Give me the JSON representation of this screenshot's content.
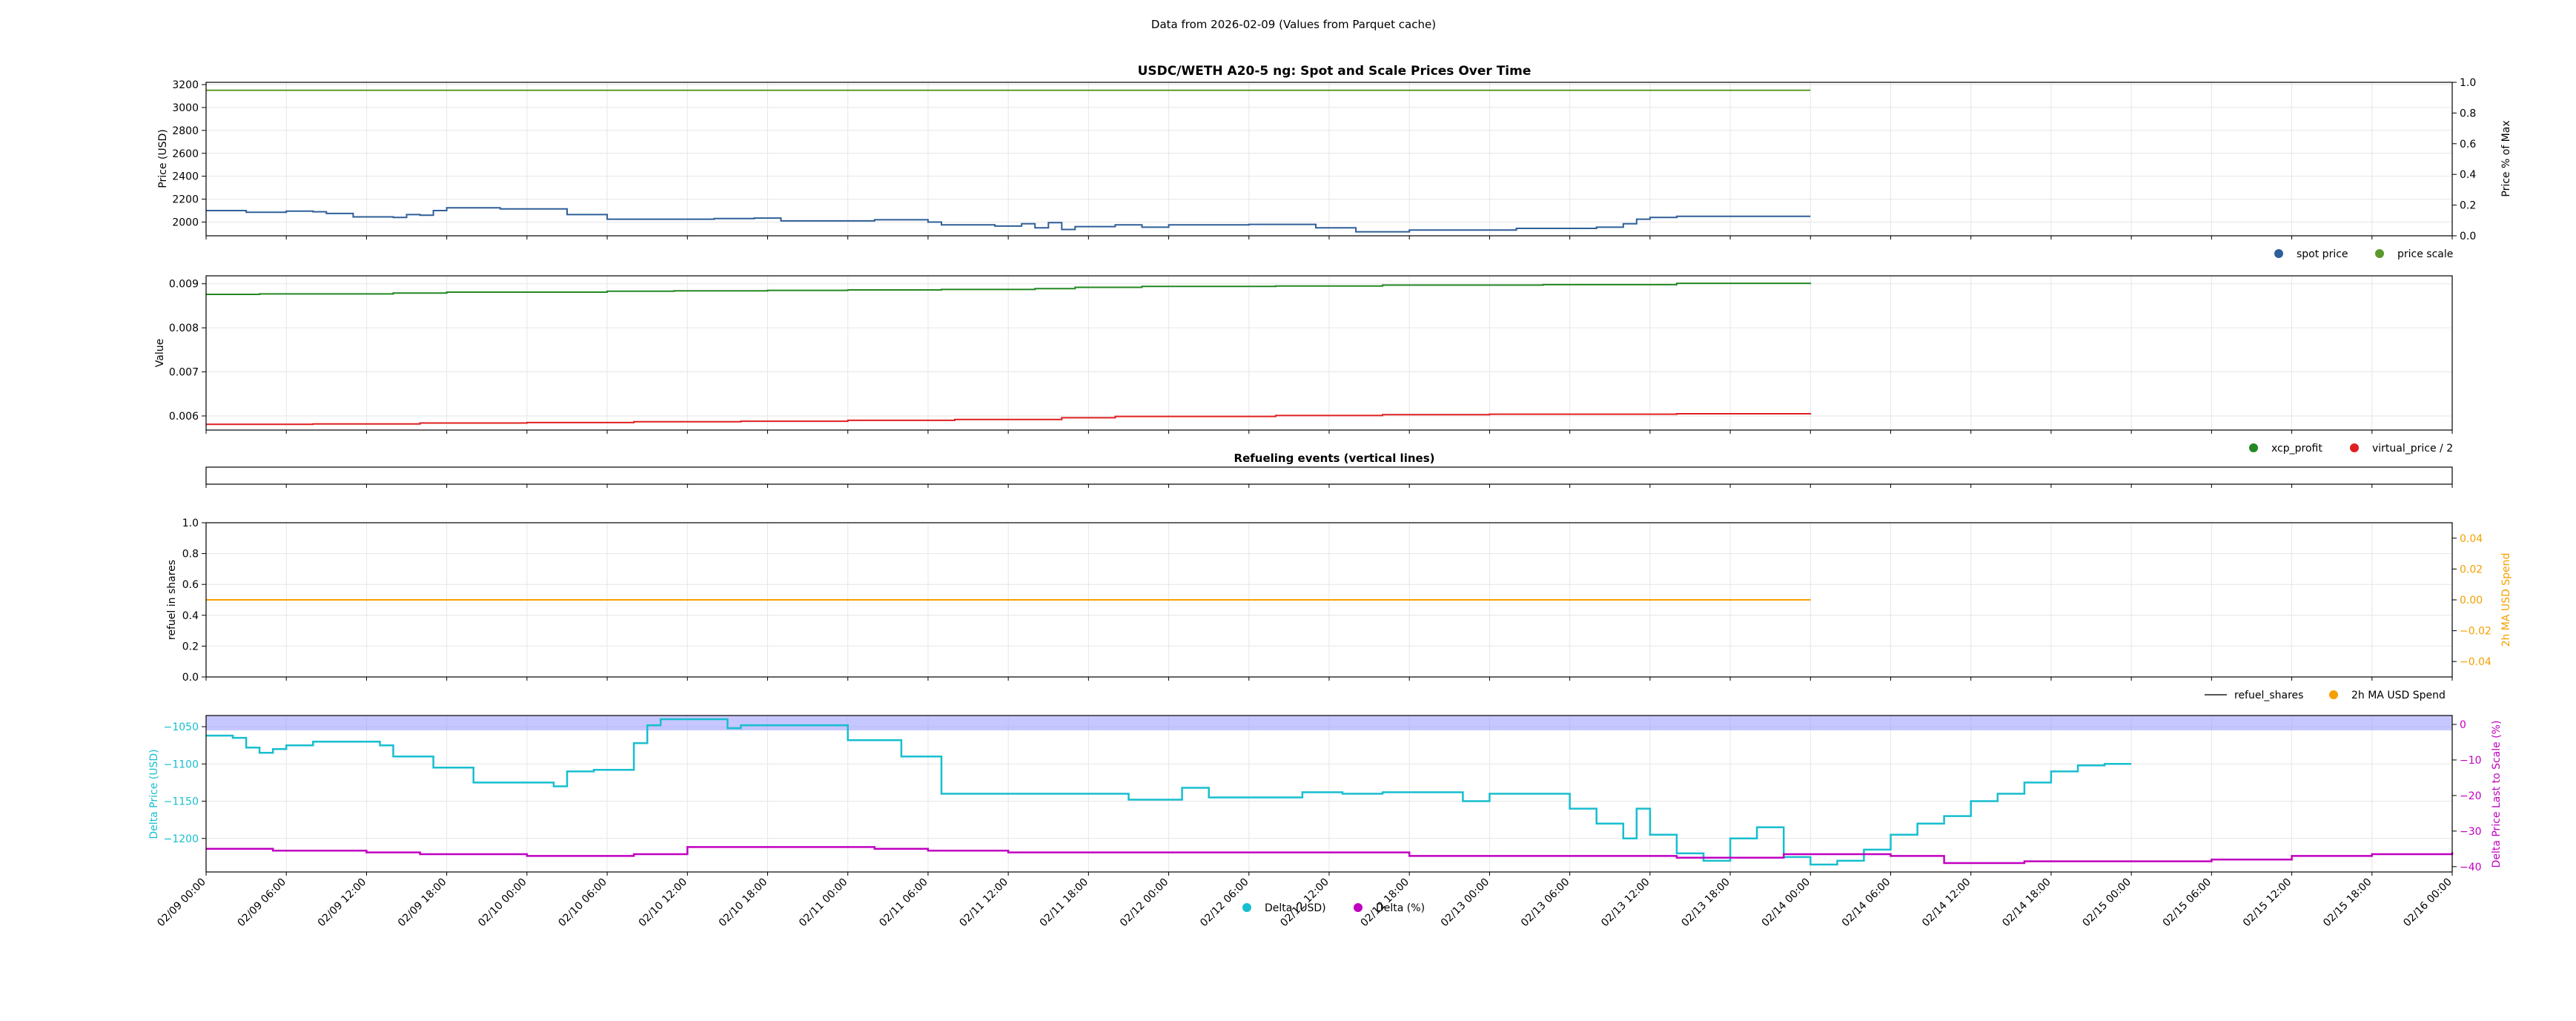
{
  "figure": {
    "suptitle": "Data from 2026-02-09 (Values from Parquet cache)",
    "x_ticks": [
      "02/09 00:00",
      "02/09 06:00",
      "02/09 12:00",
      "02/09 18:00",
      "02/10 00:00",
      "02/10 06:00",
      "02/10 12:00",
      "02/10 18:00",
      "02/11 00:00",
      "02/11 06:00",
      "02/11 12:00",
      "02/11 18:00",
      "02/12 00:00",
      "02/12 06:00",
      "02/12 12:00",
      "02/12 18:00",
      "02/13 00:00",
      "02/13 06:00",
      "02/13 12:00",
      "02/13 18:00",
      "02/14 00:00",
      "02/14 06:00",
      "02/14 12:00",
      "02/14 18:00",
      "02/15 00:00",
      "02/15 06:00",
      "02/15 12:00",
      "02/15 18:00",
      "02/16 00:00"
    ],
    "x_range_hours": [
      0,
      168
    ],
    "data_end_hours": 120
  },
  "chart_data": [
    {
      "type": "line",
      "title": "USDC/WETH A20-5 ng: Spot and Scale Prices Over Time",
      "ylabel": "Price (USD)",
      "ylim": [
        1880,
        3220
      ],
      "yticks": [
        2000,
        2200,
        2400,
        2600,
        2800,
        3000,
        3200
      ],
      "y2label": "Price % of Max",
      "y2lim": [
        0,
        1
      ],
      "y2ticks": [
        "0.0",
        "0.2",
        "0.4",
        "0.6",
        "0.8",
        "1.0"
      ],
      "legend_position": "below-right",
      "grid": true,
      "legend": [
        {
          "name": "spot price",
          "color": "#2f5f98"
        },
        {
          "name": "price scale",
          "color": "#5a9a2a"
        }
      ],
      "series": [
        {
          "name": "spot price",
          "color": "#2f5f98",
          "points": [
            [
              0,
              2100
            ],
            [
              3,
              2085
            ],
            [
              6,
              2095
            ],
            [
              8,
              2090
            ],
            [
              9,
              2075
            ],
            [
              11,
              2045
            ],
            [
              14,
              2040
            ],
            [
              15,
              2065
            ],
            [
              16,
              2060
            ],
            [
              17,
              2100
            ],
            [
              18,
              2125
            ],
            [
              22,
              2115
            ],
            [
              27,
              2065
            ],
            [
              30,
              2025
            ],
            [
              38,
              2030
            ],
            [
              41,
              2035
            ],
            [
              43,
              2010
            ],
            [
              50,
              2020
            ],
            [
              54,
              2000
            ],
            [
              55,
              1975
            ],
            [
              59,
              1965
            ],
            [
              61,
              1985
            ],
            [
              62,
              1950
            ],
            [
              63,
              1995
            ],
            [
              64,
              1935
            ],
            [
              65,
              1960
            ],
            [
              68,
              1975
            ],
            [
              70,
              1955
            ],
            [
              72,
              1975
            ],
            [
              78,
              1980
            ],
            [
              83,
              1950
            ],
            [
              86,
              1915
            ],
            [
              90,
              1930
            ],
            [
              98,
              1945
            ],
            [
              104,
              1955
            ],
            [
              106,
              1985
            ],
            [
              107,
              2025
            ],
            [
              108,
              2040
            ],
            [
              110,
              2050
            ],
            [
              120,
              2050
            ]
          ]
        },
        {
          "name": "price scale",
          "color": "#5a9a2a",
          "points": [
            [
              0,
              3150
            ],
            [
              120,
              3150
            ]
          ]
        }
      ]
    },
    {
      "type": "line",
      "ylabel": "Value",
      "ylim": [
        0.00568,
        0.00918
      ],
      "yticks": [
        "0.006",
        "0.007",
        "0.008",
        "0.009"
      ],
      "legend_position": "below-right",
      "grid": true,
      "legend": [
        {
          "name": "xcp_profit",
          "color": "#228822"
        },
        {
          "name": "virtual_price / 2",
          "color": "#e02020"
        }
      ],
      "series": [
        {
          "name": "xcp_profit",
          "color": "#228822",
          "points": [
            [
              0,
              0.00876
            ],
            [
              4,
              0.00877
            ],
            [
              10,
              0.00877
            ],
            [
              14,
              0.00879
            ],
            [
              18,
              0.00881
            ],
            [
              30,
              0.00883
            ],
            [
              35,
              0.00884
            ],
            [
              42,
              0.00885
            ],
            [
              48,
              0.00886
            ],
            [
              55,
              0.00887
            ],
            [
              62,
              0.00889
            ],
            [
              65,
              0.00892
            ],
            [
              70,
              0.00894
            ],
            [
              80,
              0.00895
            ],
            [
              88,
              0.00897
            ],
            [
              100,
              0.00898
            ],
            [
              110,
              0.00901
            ],
            [
              120,
              0.00902
            ]
          ]
        },
        {
          "name": "virtual_price / 2",
          "color": "#e02020",
          "points": [
            [
              0,
              0.00581
            ],
            [
              8,
              0.00582
            ],
            [
              16,
              0.00584
            ],
            [
              24,
              0.00585
            ],
            [
              32,
              0.00587
            ],
            [
              40,
              0.00588
            ],
            [
              48,
              0.0059
            ],
            [
              56,
              0.00592
            ],
            [
              64,
              0.00596
            ],
            [
              68,
              0.00599
            ],
            [
              80,
              0.00601
            ],
            [
              88,
              0.00603
            ],
            [
              96,
              0.00604
            ],
            [
              110,
              0.00605
            ],
            [
              120,
              0.00606
            ]
          ]
        }
      ]
    },
    {
      "type": "line",
      "title": "Refueling events (vertical lines)",
      "series": []
    },
    {
      "type": "line",
      "ylabel": "refuel in shares",
      "ylim": [
        0,
        1
      ],
      "yticks": [
        "0.0",
        "0.2",
        "0.4",
        "0.6",
        "0.8",
        "1.0"
      ],
      "y2label": "2h MA USD Spend",
      "y2lim": [
        -0.05,
        0.05
      ],
      "y2ticks": [
        "−0.04",
        "−0.02",
        "0.00",
        "0.02",
        "0.04"
      ],
      "legend_position": "below-right",
      "grid": true,
      "legend": [
        {
          "name": "refuel_shares",
          "color": "#555555",
          "marker": "line"
        },
        {
          "name": "2h MA USD Spend",
          "color": "#f5a000"
        }
      ],
      "series": [
        {
          "name": "refuel_shares",
          "color": "#555555",
          "points": [
            [
              0,
              0.5
            ],
            [
              120,
              0.5
            ]
          ]
        },
        {
          "name": "2h MA USD Spend",
          "color": "#f5a000",
          "points": [
            [
              0,
              0.5
            ],
            [
              120,
              0.5
            ]
          ]
        }
      ]
    },
    {
      "type": "line",
      "ylabel": "Delta Price (USD)",
      "ylim": [
        -1245,
        -1035
      ],
      "yticks": [
        "−1050",
        "−1100",
        "−1150",
        "−1200"
      ],
      "y2label": "Delta Price Last to Scale (%)",
      "y2lim": [
        -41.5,
        2.5
      ],
      "y2ticks": [
        "0",
        "−10",
        "−20",
        "−30",
        "−40"
      ],
      "band": [
        -1055,
        -1035
      ],
      "legend_position": "bottom-center",
      "grid": true,
      "legend": [
        {
          "name": "Delta (USD)",
          "color": "#17becf"
        },
        {
          "name": "Delta (%)",
          "color": "#c000c0"
        }
      ],
      "series": [
        {
          "name": "Delta (USD)",
          "color": "#17becf",
          "points": [
            [
              0,
              -1062
            ],
            [
              2,
              -1065
            ],
            [
              3,
              -1078
            ],
            [
              4,
              -1085
            ],
            [
              5,
              -1080
            ],
            [
              6,
              -1075
            ],
            [
              8,
              -1070
            ],
            [
              12,
              -1070
            ],
            [
              13,
              -1075
            ],
            [
              14,
              -1090
            ],
            [
              17,
              -1105
            ],
            [
              20,
              -1125
            ],
            [
              25,
              -1125
            ],
            [
              26,
              -1130
            ],
            [
              27,
              -1110
            ],
            [
              29,
              -1108
            ],
            [
              32,
              -1072
            ],
            [
              33,
              -1048
            ],
            [
              34,
              -1040
            ],
            [
              36,
              -1040
            ],
            [
              39,
              -1052
            ],
            [
              40,
              -1048
            ],
            [
              43,
              -1048
            ],
            [
              46,
              -1048
            ],
            [
              48,
              -1068
            ],
            [
              52,
              -1090
            ],
            [
              55,
              -1140
            ],
            [
              60,
              -1140
            ],
            [
              68,
              -1140
            ],
            [
              69,
              -1148
            ],
            [
              73,
              -1132
            ],
            [
              75,
              -1145
            ],
            [
              78,
              -1145
            ],
            [
              82,
              -1138
            ],
            [
              85,
              -1140
            ],
            [
              88,
              -1138
            ],
            [
              94,
              -1150
            ],
            [
              96,
              -1140
            ],
            [
              102,
              -1160
            ],
            [
              104,
              -1180
            ],
            [
              106,
              -1200
            ],
            [
              107,
              -1160
            ],
            [
              108,
              -1195
            ],
            [
              110,
              -1220
            ],
            [
              112,
              -1230
            ],
            [
              114,
              -1200
            ],
            [
              116,
              -1185
            ],
            [
              118,
              -1225
            ],
            [
              120,
              -1235
            ],
            [
              122,
              -1230
            ],
            [
              124,
              -1215
            ],
            [
              126,
              -1195
            ],
            [
              128,
              -1180
            ],
            [
              130,
              -1170
            ],
            [
              132,
              -1150
            ],
            [
              134,
              -1140
            ],
            [
              136,
              -1125
            ],
            [
              138,
              -1110
            ],
            [
              140,
              -1102
            ],
            [
              142,
              -1100
            ],
            [
              144,
              -1100
            ]
          ]
        },
        {
          "name": "Delta (%)",
          "color": "#c000c0",
          "points": [
            [
              0,
              -35
            ],
            [
              5,
              -35.5
            ],
            [
              12,
              -36
            ],
            [
              16,
              -36.5
            ],
            [
              24,
              -37
            ],
            [
              30,
              -37
            ],
            [
              32,
              -36.5
            ],
            [
              36,
              -34.5
            ],
            [
              44,
              -34.5
            ],
            [
              50,
              -35
            ],
            [
              54,
              -35.5
            ],
            [
              60,
              -36
            ],
            [
              68,
              -36
            ],
            [
              74,
              -36
            ],
            [
              80,
              -36
            ],
            [
              86,
              -36
            ],
            [
              90,
              -37
            ],
            [
              100,
              -37
            ],
            [
              110,
              -37.5
            ],
            [
              118,
              -36.5
            ],
            [
              124,
              -36.5
            ],
            [
              126,
              -37
            ],
            [
              130,
              -39
            ],
            [
              136,
              -38.5
            ],
            [
              140,
              -38.5
            ],
            [
              144,
              -38.5
            ],
            [
              150,
              -38
            ],
            [
              156,
              -37
            ],
            [
              162,
              -36.5
            ],
            [
              168,
              -36
            ]
          ]
        }
      ]
    }
  ]
}
